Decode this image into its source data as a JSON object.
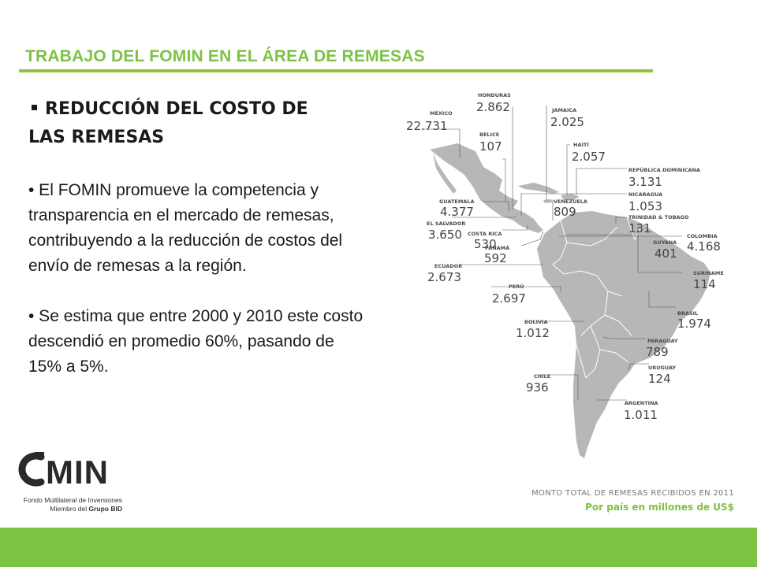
{
  "slide": {
    "title": "TRABAJO DEL FOMIN EN EL ÁREA DE REMESAS",
    "heading_line1": "REDUCCIÓN DEL COSTO DE",
    "heading_line2": "LAS REMESAS",
    "bullet1": "• El FOMIN promueve la competencia  y transparencia en el mercado de remesas, contribuyendo a la reducción  de costos del envío de remesas a la región.",
    "bullet2": "• Se estima que entre 2000 y 2010 este costo descendió en promedio 60%, pasando de 15% a 5%."
  },
  "logo": {
    "word": "MIN",
    "subtitle1": "Fondo Multilateral de Inversiones",
    "subtitle2_prefix": "Miembro del ",
    "subtitle2_bold": "Grupo BID"
  },
  "map": {
    "caption_line1": "MONTO TOTAL DE REMESAS RECIBIDOS EN 2011",
    "caption_line2": "Por país en millones de US$",
    "countries": [
      {
        "name": "MÉXICO",
        "value": "22.731"
      },
      {
        "name": "HONDURAS",
        "value": "2.862"
      },
      {
        "name": "BELICE",
        "value": "107"
      },
      {
        "name": "JAMAICA",
        "value": "2.025"
      },
      {
        "name": "HAITÍ",
        "value": "2.057"
      },
      {
        "name": "REPÚBLICA DOMINICANA",
        "value": "3.131"
      },
      {
        "name": "NICARAGUA",
        "value": "1.053"
      },
      {
        "name": "TRINIDAD & TOBAGO",
        "value": "131"
      },
      {
        "name": "GUATEMALA",
        "value": "4.377"
      },
      {
        "name": "VENEZUELA",
        "value": "809"
      },
      {
        "name": "EL SALVADOR",
        "value": "3.650"
      },
      {
        "name": "COSTA RICA",
        "value": "530"
      },
      {
        "name": "PANAMÁ",
        "value": "592"
      },
      {
        "name": "GUYANA",
        "value": "401"
      },
      {
        "name": "COLOMBIA",
        "value": "4.168"
      },
      {
        "name": "ECUADOR",
        "value": "2.673"
      },
      {
        "name": "SURINAME",
        "value": "114"
      },
      {
        "name": "PERÚ",
        "value": "2.697"
      },
      {
        "name": "BRASIL",
        "value": "1.974"
      },
      {
        "name": "BOLIVIA",
        "value": "1.012"
      },
      {
        "name": "PARAGUAY",
        "value": "789"
      },
      {
        "name": "URUGUAY",
        "value": "124"
      },
      {
        "name": "CHILE",
        "value": "936"
      },
      {
        "name": "ARGENTINA",
        "value": "1.011"
      }
    ]
  }
}
